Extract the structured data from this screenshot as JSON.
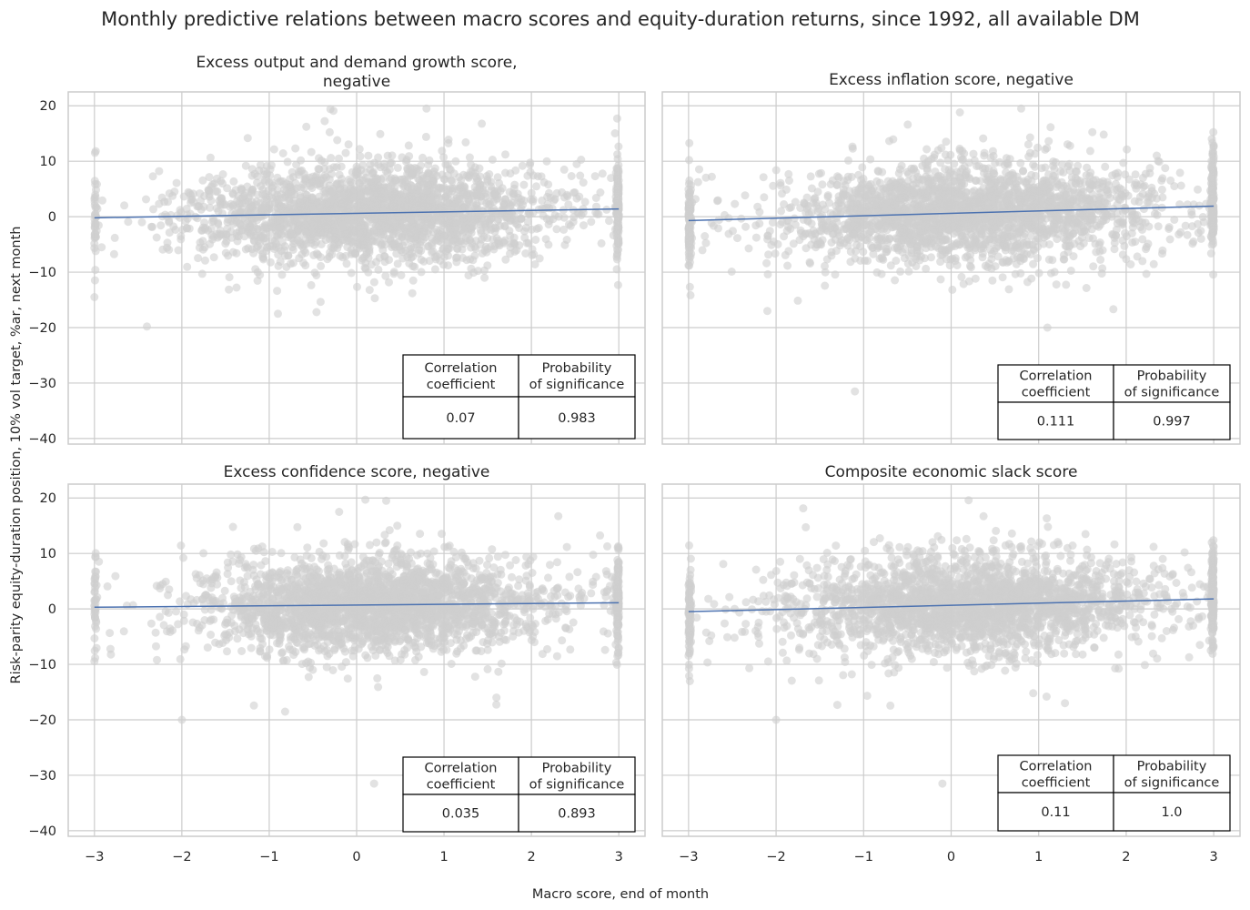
{
  "figure": {
    "title": "Monthly predictive relations between macro scores and equity-duration returns, since 1992, all available DM",
    "xlabel": "Macro score, end of month",
    "ylabel": "Risk-parity equity-duration position, 10% vol target, %ar, next month"
  },
  "colors": {
    "points": "#cfcfcf",
    "regression_line": "#4c72b0",
    "grid": "#cccccc",
    "axes_edge": "#cccccc",
    "table_border": "#000000"
  },
  "table_headers": [
    "Correlation\ncoefficient",
    "Probability\nof significance"
  ],
  "chart_data": [
    {
      "type": "scatter",
      "title": "Excess output and demand growth score, negative",
      "xlim": [
        -3.3,
        3.3
      ],
      "ylim": [
        -41,
        22.5
      ],
      "xticks": [
        -3,
        -2,
        -1,
        0,
        1,
        2,
        3
      ],
      "yticks": [
        -40,
        -30,
        -20,
        -10,
        0,
        10,
        20
      ],
      "regression": {
        "x": [
          -3,
          3
        ],
        "y": [
          -0.2,
          1.4
        ]
      },
      "correlation": "0.07",
      "probability": "0.983",
      "n_points": 2600,
      "seed": 11,
      "extremes": [
        [
          -2.4,
          -19.8
        ],
        [
          -3,
          -14.5
        ],
        [
          -0.9,
          -17.5
        ],
        [
          0.8,
          19.5
        ],
        [
          -0.3,
          19.4
        ]
      ]
    },
    {
      "type": "scatter",
      "title": "Excess inflation score, negative",
      "xlim": [
        -3.3,
        3.3
      ],
      "ylim": [
        -41,
        22.5
      ],
      "xticks": [
        -3,
        -2,
        -1,
        0,
        1,
        2,
        3
      ],
      "yticks": [
        -40,
        -30,
        -20,
        -10,
        0,
        10,
        20
      ],
      "regression": {
        "x": [
          -3,
          3
        ],
        "y": [
          -0.7,
          1.9
        ]
      },
      "correlation": "0.111",
      "probability": "0.997",
      "n_points": 2600,
      "seed": 23,
      "extremes": [
        [
          -1.1,
          -31.5
        ],
        [
          1.1,
          -20
        ],
        [
          -2.1,
          -17
        ],
        [
          0.8,
          19.5
        ],
        [
          0.1,
          18.8
        ]
      ]
    },
    {
      "type": "scatter",
      "title": "Excess confidence score, negative",
      "xlim": [
        -3.3,
        3.3
      ],
      "ylim": [
        -41,
        22.5
      ],
      "xticks": [
        -3,
        -2,
        -1,
        0,
        1,
        2,
        3
      ],
      "yticks": [
        -40,
        -30,
        -20,
        -10,
        0,
        10,
        20
      ],
      "regression": {
        "x": [
          -3,
          3
        ],
        "y": [
          0.3,
          1.1
        ]
      },
      "correlation": "0.035",
      "probability": "0.893",
      "n_points": 2600,
      "seed": 37,
      "extremes": [
        [
          0.2,
          -31.5
        ],
        [
          -2,
          -20
        ],
        [
          0.1,
          19.7
        ],
        [
          -0.2,
          17.5
        ],
        [
          1.6,
          -16
        ]
      ]
    },
    {
      "type": "scatter",
      "title": "Composite economic slack score",
      "xlim": [
        -3.3,
        3.3
      ],
      "ylim": [
        -41,
        22.5
      ],
      "xticks": [
        -3,
        -2,
        -1,
        0,
        1,
        2,
        3
      ],
      "yticks": [
        -40,
        -30,
        -20,
        -10,
        0,
        10,
        20
      ],
      "regression": {
        "x": [
          -3,
          3
        ],
        "y": [
          -0.5,
          1.8
        ]
      },
      "correlation": "0.11",
      "probability": "1.0",
      "n_points": 2600,
      "seed": 53,
      "extremes": [
        [
          -0.1,
          -31.5
        ],
        [
          -2,
          -20
        ],
        [
          0.2,
          19.6
        ],
        [
          1.3,
          -17
        ],
        [
          -1.3,
          -17.3
        ]
      ]
    }
  ]
}
